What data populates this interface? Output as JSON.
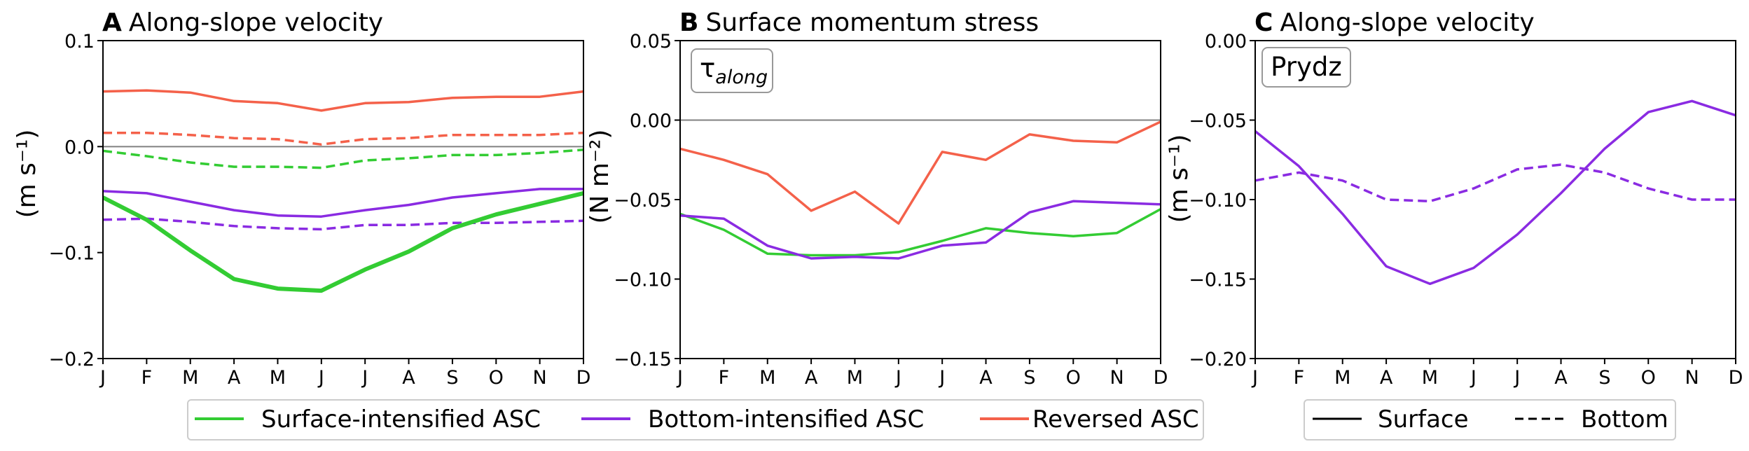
{
  "months": [
    "J",
    "F",
    "M",
    "A",
    "M",
    "J",
    "J",
    "A",
    "S",
    "O",
    "N",
    "D"
  ],
  "colors": {
    "surface_intensified": "#33cc33",
    "bottom_intensified": "#8a2be2",
    "reversed": "#f4614a",
    "zero_line": "#808080"
  },
  "chart_data": [
    {
      "type": "line",
      "panel_letter": "A",
      "title": "Along-slope velocity",
      "ylabel": "(m s⁻¹)",
      "ylim": [
        -0.2,
        0.1
      ],
      "yticks": [
        "0.1",
        "0.0",
        "−0.1",
        "−0.2"
      ],
      "ytick_values": [
        0.1,
        0.0,
        -0.1,
        -0.2
      ],
      "zero_line": true,
      "series": [
        {
          "name": "Reversed ASC",
          "group": "reversed",
          "style": "solid",
          "values": [
            0.052,
            0.053,
            0.051,
            0.043,
            0.041,
            0.034,
            0.041,
            0.042,
            0.046,
            0.047,
            0.047,
            0.052
          ]
        },
        {
          "name": "Reversed ASC",
          "group": "reversed",
          "style": "dashed",
          "values": [
            0.013,
            0.013,
            0.011,
            0.008,
            0.007,
            0.002,
            0.007,
            0.008,
            0.011,
            0.011,
            0.011,
            0.013
          ]
        },
        {
          "name": "Surface-intensified ASC",
          "group": "surface_intensified",
          "style": "dashed",
          "values": [
            -0.004,
            -0.009,
            -0.015,
            -0.019,
            -0.019,
            -0.02,
            -0.013,
            -0.011,
            -0.008,
            -0.008,
            -0.006,
            -0.003
          ]
        },
        {
          "name": "Bottom-intensified ASC",
          "group": "bottom_intensified",
          "style": "solid",
          "values": [
            -0.042,
            -0.044,
            -0.052,
            -0.06,
            -0.065,
            -0.066,
            -0.06,
            -0.055,
            -0.048,
            -0.044,
            -0.04,
            -0.04
          ]
        },
        {
          "name": "Bottom-intensified ASC",
          "group": "bottom_intensified",
          "style": "dashed",
          "values": [
            -0.069,
            -0.068,
            -0.071,
            -0.075,
            -0.077,
            -0.078,
            -0.074,
            -0.074,
            -0.072,
            -0.072,
            -0.071,
            -0.07
          ]
        },
        {
          "name": "Surface-intensified ASC",
          "group": "surface_intensified",
          "style": "solid",
          "thick": true,
          "values": [
            -0.048,
            -0.069,
            -0.098,
            -0.125,
            -0.134,
            -0.136,
            -0.116,
            -0.099,
            -0.077,
            -0.064,
            -0.054,
            -0.044
          ]
        }
      ]
    },
    {
      "type": "line",
      "panel_letter": "B",
      "title": "Surface momentum stress",
      "ylabel": "(N m⁻²)",
      "ylim": [
        -0.15,
        0.05
      ],
      "yticks": [
        "0.05",
        "0.00",
        "−0.05",
        "−0.10",
        "−0.15"
      ],
      "ytick_values": [
        0.05,
        0.0,
        -0.05,
        -0.1,
        -0.15
      ],
      "zero_line": true,
      "inset_label": "τ",
      "inset_sub": "along",
      "series": [
        {
          "name": "Reversed ASC",
          "group": "reversed",
          "style": "solid",
          "values": [
            -0.018,
            -0.025,
            -0.034,
            -0.057,
            -0.045,
            -0.065,
            -0.02,
            -0.025,
            -0.009,
            -0.013,
            -0.014,
            -0.001
          ]
        },
        {
          "name": "Surface-intensified ASC",
          "group": "surface_intensified",
          "style": "solid",
          "values": [
            -0.059,
            -0.069,
            -0.084,
            -0.085,
            -0.085,
            -0.083,
            -0.076,
            -0.068,
            -0.071,
            -0.073,
            -0.071,
            -0.056
          ]
        },
        {
          "name": "Bottom-intensified ASC",
          "group": "bottom_intensified",
          "style": "solid",
          "values": [
            -0.06,
            -0.062,
            -0.079,
            -0.087,
            -0.086,
            -0.087,
            -0.079,
            -0.077,
            -0.058,
            -0.051,
            -0.052,
            -0.053
          ]
        }
      ]
    },
    {
      "type": "line",
      "panel_letter": "C",
      "title": "Along-slope velocity",
      "ylabel": "(m s⁻¹)",
      "ylim": [
        -0.2,
        0.0
      ],
      "yticks": [
        "0.00",
        "−0.05",
        "−0.10",
        "−0.15",
        "−0.20"
      ],
      "ytick_values": [
        0.0,
        -0.05,
        -0.1,
        -0.15,
        -0.2
      ],
      "zero_line": false,
      "inset_label": "Prydz",
      "series": [
        {
          "name": "Surface",
          "group": "bottom_intensified",
          "style": "solid",
          "values": [
            -0.057,
            -0.079,
            -0.109,
            -0.142,
            -0.153,
            -0.143,
            -0.122,
            -0.096,
            -0.068,
            -0.045,
            -0.038,
            -0.047
          ]
        },
        {
          "name": "Bottom",
          "group": "bottom_intensified",
          "style": "dashed",
          "values": [
            -0.088,
            -0.083,
            -0.088,
            -0.1,
            -0.101,
            -0.093,
            -0.081,
            -0.078,
            -0.083,
            -0.093,
            -0.1,
            -0.1
          ]
        }
      ]
    }
  ],
  "legend_main": [
    {
      "label": "Surface-intensified ASC",
      "group": "surface_intensified"
    },
    {
      "label": "Bottom-intensified ASC",
      "group": "bottom_intensified"
    },
    {
      "label": "Reversed ASC",
      "group": "reversed"
    }
  ],
  "legend_style": [
    {
      "label": "Surface",
      "style": "solid"
    },
    {
      "label": "Bottom",
      "style": "dashed"
    }
  ]
}
